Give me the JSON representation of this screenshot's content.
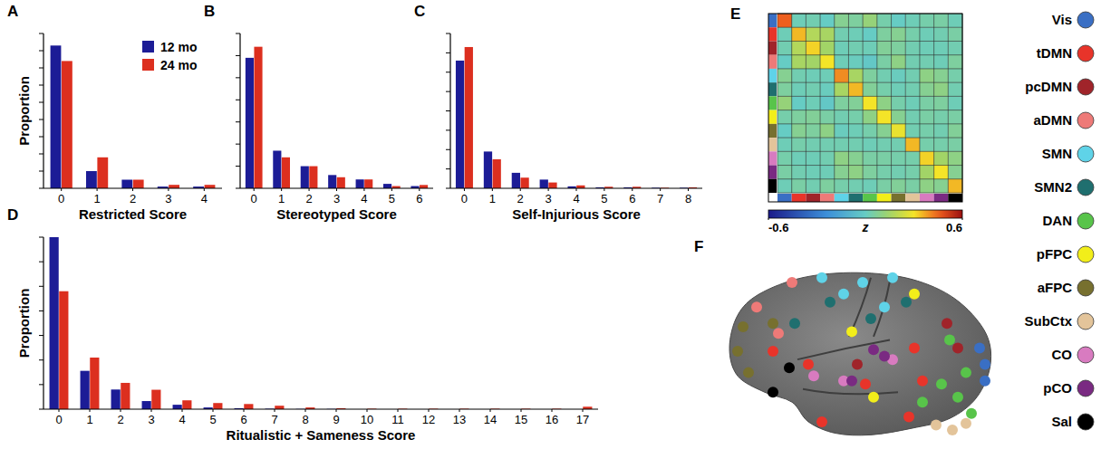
{
  "chart_data": [
    {
      "type": "bar",
      "panel_label": "A",
      "x_label": "Restricted Score",
      "y_label": "Proportion",
      "categories": [
        0,
        1,
        2,
        3,
        4
      ],
      "series": [
        {
          "name": "12 mo",
          "color": "#1c1c96",
          "values": [
            0.83,
            0.1,
            0.05,
            0.01,
            0.01
          ]
        },
        {
          "name": "24 mo",
          "color": "#dc2f1f",
          "values": [
            0.74,
            0.18,
            0.05,
            0.02,
            0.02
          ]
        }
      ],
      "ylim": [
        0,
        0.9
      ],
      "yticks": [
        0,
        0.1,
        0.2,
        0.3,
        0.4,
        0.5,
        0.6,
        0.7,
        0.8,
        0.9
      ],
      "tick_labels": "x",
      "legend": "top-right"
    },
    {
      "type": "bar",
      "panel_label": "B",
      "x_label": "Stereotyped Score",
      "categories": [
        0,
        1,
        2,
        3,
        4,
        5,
        6
      ],
      "series": [
        {
          "color": "#1c1c96",
          "values": [
            0.59,
            0.17,
            0.1,
            0.06,
            0.04,
            0.02,
            0.01
          ]
        },
        {
          "color": "#dc2f1f",
          "values": [
            0.64,
            0.14,
            0.1,
            0.05,
            0.04,
            0.01,
            0.015
          ]
        }
      ],
      "ylim": [
        0,
        0.7
      ],
      "yticks": [
        0,
        0.1,
        0.2,
        0.3,
        0.4,
        0.5,
        0.6,
        0.7
      ],
      "tick_labels": "x"
    },
    {
      "type": "bar",
      "panel_label": "C",
      "x_label": "Self-Injurious Score",
      "categories": [
        0,
        1,
        2,
        3,
        4,
        5,
        6,
        7,
        8
      ],
      "series": [
        {
          "color": "#1c1c96",
          "values": [
            0.66,
            0.19,
            0.08,
            0.045,
            0.01,
            0.005,
            0.005,
            0.003,
            0.003
          ]
        },
        {
          "color": "#dc2f1f",
          "values": [
            0.73,
            0.15,
            0.055,
            0.03,
            0.015,
            0.008,
            0.008,
            0.003,
            0.005
          ]
        }
      ],
      "ylim": [
        0,
        0.8
      ],
      "yticks": [
        0,
        0.1,
        0.2,
        0.3,
        0.4,
        0.5,
        0.6,
        0.7,
        0.8
      ],
      "tick_labels": "x"
    },
    {
      "type": "bar",
      "panel_label": "D",
      "x_label": "Ritualistic + Sameness Score",
      "y_label": "Proportion",
      "categories": [
        0,
        1,
        2,
        3,
        4,
        5,
        6,
        7,
        8,
        9,
        10,
        11,
        12,
        13,
        14,
        15,
        16,
        17
      ],
      "series": [
        {
          "color": "#1c1c96",
          "values": [
            0.7,
            0.156,
            0.08,
            0.033,
            0.018,
            0.007,
            0.004,
            0.002,
            0.001,
            0.001,
            0,
            0,
            0,
            0,
            0,
            0,
            0,
            0
          ]
        },
        {
          "color": "#dc2f1f",
          "values": [
            0.48,
            0.21,
            0.107,
            0.079,
            0.036,
            0.025,
            0.021,
            0.014,
            0.007,
            0.004,
            0.002,
            0.002,
            0.002,
            0.002,
            0.002,
            0.002,
            0.002,
            0.01
          ]
        }
      ],
      "ylim": [
        0,
        0.7
      ],
      "yticks": [
        0,
        0.1,
        0.2,
        0.3,
        0.4,
        0.5,
        0.6,
        0.7
      ],
      "tick_labels": "x"
    },
    {
      "type": "heatmap",
      "panel_label": "E",
      "colors": [
        "#3a6fc4",
        "#e8342a",
        "#a0242a",
        "#ee7a78",
        "#5fd3e8",
        "#1f6f6f",
        "#58c44a",
        "#f2ee1a",
        "#77702f",
        "#e3c49a",
        "#d87bc0",
        "#7a2a82",
        "#000000"
      ],
      "cells": [
        [
          0.45,
          0.02,
          0.03,
          0.0,
          0.08,
          0.06,
          0.12,
          0.04,
          0.0,
          0.02,
          0.04,
          0.05,
          0.02
        ],
        [
          0.02,
          0.35,
          0.18,
          0.16,
          0.03,
          0.02,
          0.0,
          0.06,
          0.08,
          0.04,
          0.02,
          0.03,
          0.05
        ],
        [
          0.03,
          0.18,
          0.32,
          0.15,
          0.02,
          0.03,
          0.02,
          0.07,
          0.06,
          0.03,
          0.02,
          0.02,
          0.03
        ],
        [
          0.0,
          0.16,
          0.15,
          0.3,
          0.02,
          0.01,
          -0.02,
          0.05,
          0.1,
          0.03,
          0.03,
          0.02,
          0.06
        ],
        [
          0.08,
          0.03,
          0.02,
          0.02,
          0.4,
          0.16,
          0.06,
          0.03,
          0.01,
          0.03,
          0.1,
          0.08,
          0.04
        ],
        [
          0.06,
          0.02,
          0.03,
          0.01,
          0.16,
          0.35,
          0.07,
          0.04,
          0.02,
          0.03,
          0.08,
          0.1,
          0.03
        ],
        [
          0.12,
          0.0,
          0.02,
          -0.02,
          0.06,
          0.07,
          0.3,
          0.1,
          0.04,
          0.02,
          0.05,
          0.06,
          0.02
        ],
        [
          0.04,
          0.06,
          0.07,
          0.05,
          0.03,
          0.04,
          0.1,
          0.3,
          0.08,
          0.03,
          0.05,
          0.04,
          0.05
        ],
        [
          0.0,
          0.08,
          0.06,
          0.1,
          0.01,
          0.02,
          0.04,
          0.08,
          0.28,
          0.03,
          0.04,
          0.03,
          0.07
        ],
        [
          0.02,
          0.04,
          0.03,
          0.03,
          0.03,
          0.03,
          0.02,
          0.03,
          0.03,
          0.35,
          0.04,
          0.04,
          0.05
        ],
        [
          0.04,
          0.02,
          0.02,
          0.03,
          0.1,
          0.08,
          0.05,
          0.05,
          0.04,
          0.04,
          0.32,
          0.15,
          0.1
        ],
        [
          0.05,
          0.03,
          0.02,
          0.02,
          0.08,
          0.1,
          0.06,
          0.04,
          0.03,
          0.04,
          0.15,
          0.3,
          0.08
        ],
        [
          0.02,
          0.05,
          0.03,
          0.06,
          0.04,
          0.03,
          0.02,
          0.05,
          0.07,
          0.05,
          0.1,
          0.08,
          0.35
        ]
      ],
      "colorbar_range": [
        -0.6,
        0.6
      ],
      "colorbar_ticks": [
        -0.6,
        0.6
      ],
      "colorbar_label": "z"
    },
    {
      "type": "scatter",
      "panel_label": "F",
      "xlim": [
        0,
        100
      ],
      "ylim": [
        0,
        105
      ],
      "tick_labels": false,
      "legend": "right",
      "marker": "circle",
      "series": [
        {
          "name": "Vis",
          "color": "#3a6fc4",
          "x": [
            95,
            97,
            97
          ],
          "y": [
            55,
            45,
            35
          ]
        },
        {
          "name": "tDMN",
          "color": "#e8342a",
          "x": [
            71,
            32,
            53,
            74,
            69,
            37,
            19
          ],
          "y": [
            55,
            45,
            33,
            35,
            13,
            10,
            53
          ]
        },
        {
          "name": "pcDMN",
          "color": "#a0242a",
          "x": [
            83,
            87,
            50
          ],
          "y": [
            70,
            55,
            45
          ]
        },
        {
          "name": "aDMN",
          "color": "#ee7a78",
          "x": [
            13,
            26,
            21
          ],
          "y": [
            80,
            95,
            64
          ]
        },
        {
          "name": "SMN",
          "color": "#5fd3e8",
          "x": [
            37,
            52,
            63,
            60,
            45
          ],
          "y": [
            98,
            95,
            98,
            80,
            88
          ]
        },
        {
          "name": "SMN2",
          "color": "#1f6f6f",
          "x": [
            40,
            55,
            68,
            27
          ],
          "y": [
            83,
            73,
            83,
            70
          ]
        },
        {
          "name": "DAN",
          "color": "#58c44a",
          "x": [
            81,
            87,
            92,
            74,
            90,
            84
          ],
          "y": [
            33,
            25,
            15,
            22,
            40,
            60
          ]
        },
        {
          "name": "pFPC",
          "color": "#f2ee1a",
          "x": [
            71,
            56,
            48
          ],
          "y": [
            88,
            25,
            65
          ]
        },
        {
          "name": "aFPC",
          "color": "#77702f",
          "x": [
            6,
            10,
            19,
            8
          ],
          "y": [
            53,
            40,
            70,
            68
          ]
        },
        {
          "name": "SubCtx",
          "color": "#e3c49a",
          "x": [
            79,
            85,
            90
          ],
          "y": [
            8,
            5,
            9
          ]
        },
        {
          "name": "CO",
          "color": "#d87bc0",
          "x": [
            34,
            45,
            63
          ],
          "y": [
            38,
            35,
            48
          ]
        },
        {
          "name": "pCO",
          "color": "#7a2a82",
          "x": [
            56,
            60,
            48
          ],
          "y": [
            54,
            50,
            35
          ]
        },
        {
          "name": "Sal",
          "color": "#000000",
          "x": [
            25,
            19
          ],
          "y": [
            43,
            28
          ]
        }
      ]
    }
  ]
}
